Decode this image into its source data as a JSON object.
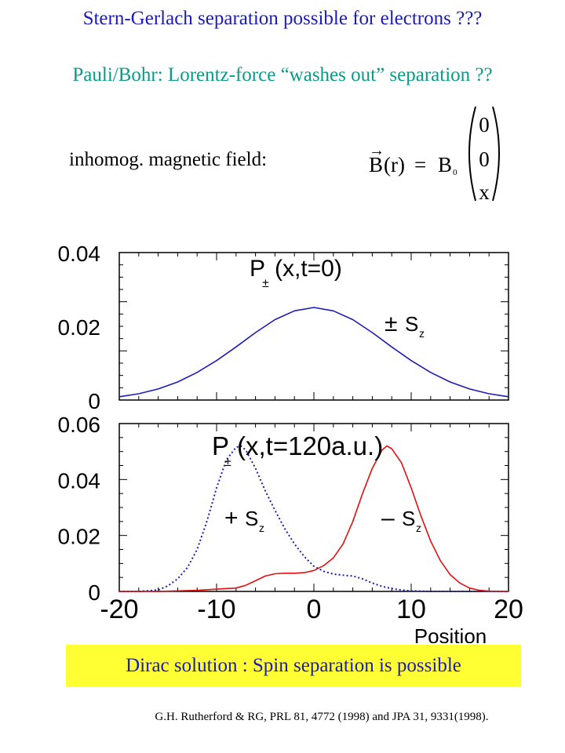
{
  "title": "Stern-Gerlach separation possible for electrons ???",
  "subtitle": "Pauli/Bohr:  Lorentz-force “washes out” separation ??",
  "field_label": "inhomog.  magnetic  field:",
  "formula": {
    "lhs_vec": "B",
    "lhs_arg": "(r)",
    "equals": "=",
    "rhs_coef": "B",
    "rhs_sub": "0",
    "components": [
      "0",
      "0",
      "x"
    ]
  },
  "banner": "Dirac solution :  Spin separation is possible",
  "citation": "G.H. Rutherford & RG, PRL 81, 4772 (1998) and JPA 31, 9331(1998).",
  "colors": {
    "title": "#1c1cb4",
    "subtitle": "#0a9a8a",
    "banner_bg": "#ffff33",
    "blue_curve": "#1c1cb4",
    "red_curve": "#e01010"
  },
  "chart_data": [
    {
      "type": "line",
      "panel": "top",
      "curve_label": {
        "main": "P",
        "sub": "±",
        "arg": "(x,t=0)"
      },
      "annotation": {
        "sign": "±",
        "S": "S",
        "sub": "z"
      },
      "xlim": [
        -20,
        20
      ],
      "ylim": [
        0,
        0.04
      ],
      "ytick_labels": [
        "0.04",
        "0.02",
        "0"
      ],
      "ytick_values": [
        0.04,
        0.02,
        0
      ],
      "series": [
        {
          "style": "solid",
          "color": "blue",
          "x": [
            -20,
            -18,
            -16,
            -14,
            -12,
            -10,
            -8,
            -6,
            -4,
            -2,
            0,
            2,
            4,
            6,
            8,
            10,
            12,
            14,
            16,
            18,
            20
          ],
          "y": [
            0.0009,
            0.0017,
            0.003,
            0.0049,
            0.0075,
            0.0107,
            0.0144,
            0.0183,
            0.0218,
            0.0242,
            0.0251,
            0.0242,
            0.0218,
            0.0183,
            0.0144,
            0.0107,
            0.0075,
            0.0049,
            0.003,
            0.0017,
            0.0009
          ]
        }
      ]
    },
    {
      "type": "line",
      "panel": "bottom",
      "curve_label": {
        "main": "P",
        "sub": "±",
        "arg": "(x,t=120a.u.)"
      },
      "annotation_plus": {
        "sign": "+",
        "S": "S",
        "sub": "z"
      },
      "annotation_minus": {
        "sign": "–",
        "S": "S",
        "sub": "z"
      },
      "xlim": [
        -20,
        20
      ],
      "ylim": [
        0,
        0.06
      ],
      "xlabel": "Position",
      "xtick_labels": [
        "-20",
        "-10",
        "0",
        "10",
        "20"
      ],
      "xtick_values": [
        -20,
        -10,
        0,
        10,
        20
      ],
      "ytick_labels": [
        "0.06",
        "0.04",
        "0.02",
        "0"
      ],
      "ytick_values": [
        0.06,
        0.04,
        0.02,
        0
      ],
      "series": [
        {
          "style": "dotted",
          "color": "blue",
          "x": [
            -20,
            -18,
            -16,
            -15,
            -14,
            -13,
            -12,
            -11,
            -10,
            -9,
            -8,
            -7.5,
            -7,
            -6,
            -5,
            -4,
            -3,
            -2,
            -1,
            0,
            1,
            2,
            3,
            4,
            5,
            6,
            7,
            8,
            9,
            10,
            12,
            14,
            16,
            18,
            20
          ],
          "y": [
            0.0,
            0.0,
            0.0005,
            0.002,
            0.0045,
            0.0085,
            0.015,
            0.025,
            0.037,
            0.047,
            0.0515,
            0.052,
            0.0505,
            0.044,
            0.036,
            0.029,
            0.0225,
            0.017,
            0.0125,
            0.009,
            0.0072,
            0.0062,
            0.0058,
            0.0055,
            0.0045,
            0.003,
            0.0018,
            0.001,
            0.0005,
            0.0002,
            0.0,
            0.0,
            0.0,
            0.0,
            0.0
          ]
        },
        {
          "style": "solid",
          "color": "red",
          "x": [
            -20,
            -18,
            -16,
            -14,
            -12,
            -10,
            -8,
            -7,
            -6,
            -5,
            -4,
            -3,
            -2,
            -1,
            0,
            1,
            2,
            3,
            4,
            5,
            6,
            7,
            7.5,
            8,
            9,
            10,
            11,
            12,
            13,
            14,
            15,
            16,
            17,
            18,
            20
          ],
          "y": [
            0.0,
            0.0,
            0.0,
            0.0002,
            0.0004,
            0.0008,
            0.0012,
            0.0022,
            0.0038,
            0.0055,
            0.0063,
            0.0065,
            0.0065,
            0.0067,
            0.0075,
            0.0092,
            0.012,
            0.017,
            0.025,
            0.035,
            0.044,
            0.0505,
            0.052,
            0.051,
            0.046,
            0.037,
            0.027,
            0.018,
            0.011,
            0.006,
            0.003,
            0.0012,
            0.0004,
            0.0001,
            0.0
          ]
        }
      ]
    }
  ]
}
